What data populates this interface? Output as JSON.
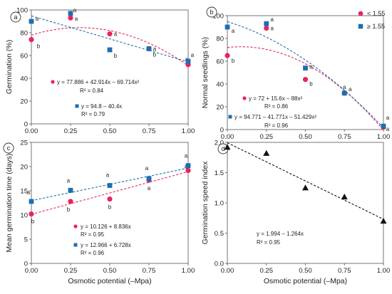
{
  "colors": {
    "red": "#e8245a",
    "blue": "#1f6eb0",
    "black": "#111111"
  },
  "chart_data": [
    {
      "panel": "a",
      "type": "scatter",
      "ylabel": "Germination (%)",
      "xlabel": "",
      "xlim": [
        0,
        1
      ],
      "ylim": [
        0,
        100
      ],
      "xticks": [
        "0.00",
        "0.25",
        "0.50",
        "0.75",
        "1.00"
      ],
      "yticks": [
        "0",
        "20",
        "40",
        "60",
        "80",
        "100"
      ],
      "series": [
        {
          "color": "#e8245a",
          "marker": "circle",
          "x": [
            0,
            0.25,
            0.5,
            0.75,
            1.0
          ],
          "values": [
            74,
            93,
            79,
            66,
            52
          ],
          "labels": [
            "b",
            "a",
            "a",
            "a",
            "a"
          ],
          "fit": {
            "a": 77.886,
            "b": 42.914,
            "c": -69.714
          },
          "equation": "y = 77.886 + 42.914x – 69.714x²",
          "r2": "R² = 0.84"
        },
        {
          "color": "#1f6eb0",
          "marker": "square",
          "x": [
            0,
            0.25,
            0.5,
            0.75,
            1.0
          ],
          "values": [
            90,
            97,
            65,
            66,
            55
          ],
          "labels": [
            "a",
            "a",
            "b",
            "b",
            "a"
          ],
          "fit": {
            "a": 94.8,
            "b": -40.4,
            "c": 0
          },
          "equation": "y = 94.8 – 40.4x",
          "r2": "R² = 0.79"
        }
      ]
    },
    {
      "panel": "b",
      "type": "scatter",
      "ylabel": "Normal seedlings (%)",
      "xlabel": "",
      "xlim": [
        0,
        1
      ],
      "ylim": [
        0,
        100
      ],
      "xticks": [
        "0.00",
        "0.25",
        "0.50",
        "0.75",
        "1.00"
      ],
      "yticks": [
        "0",
        "20",
        "40",
        "60",
        "80",
        "100"
      ],
      "legend": {
        "position": "top-right",
        "entries": [
          "< 1.55",
          "≥ 1.55"
        ]
      },
      "series": [
        {
          "name": "< 1.55",
          "color": "#e8245a",
          "marker": "circle",
          "x": [
            0,
            0.25,
            0.5,
            0.75,
            1.0
          ],
          "values": [
            65,
            89,
            44,
            32,
            2
          ],
          "labels": [
            "b",
            "a",
            "b",
            "a",
            "a"
          ],
          "fit": {
            "a": 72,
            "b": 15.6,
            "c": -88
          },
          "equation": "y = 72 + 15.6x – 88x²",
          "r2": "R² = 0.86"
        },
        {
          "name": "≥ 1.55",
          "color": "#1f6eb0",
          "marker": "square",
          "x": [
            0,
            0.25,
            0.5,
            0.75,
            1.0
          ],
          "values": [
            90,
            93,
            54,
            32,
            3
          ],
          "labels": [
            "a",
            "a",
            "a",
            "a",
            "a"
          ],
          "fit": {
            "a": 94.771,
            "b": -41.771,
            "c": -51.429
          },
          "equation": "y = 94.771 – 41.771x – 51.429x²",
          "r2": "R² = 0.96"
        }
      ]
    },
    {
      "panel": "c",
      "type": "scatter",
      "ylabel": "Mean germination time (days)",
      "xlabel": "Osmotic potential (–Mpa)",
      "xlim": [
        0,
        1
      ],
      "ylim": [
        0,
        25
      ],
      "xticks": [
        "0.00",
        "0.25",
        "0.50",
        "0.75",
        "1.00"
      ],
      "yticks": [
        "0",
        "5",
        "10",
        "15",
        "20",
        "25"
      ],
      "series": [
        {
          "color": "#e8245a",
          "marker": "circle",
          "x": [
            0,
            0.25,
            0.5,
            0.75,
            1.0
          ],
          "values": [
            10.2,
            12.8,
            13.3,
            17.2,
            19.2
          ],
          "labels": [
            "b",
            "b",
            "b",
            "a",
            "a"
          ],
          "fit": {
            "a": 10.126,
            "b": 8.836,
            "c": 0
          },
          "equation": "y = 10.126 + 8.836x",
          "r2": "R² = 0.95"
        },
        {
          "color": "#1f6eb0",
          "marker": "square",
          "x": [
            0,
            0.25,
            0.5,
            0.75,
            1.0
          ],
          "values": [
            12.8,
            15.1,
            16.1,
            17.5,
            20.2
          ],
          "labels": [
            "a",
            "a",
            "a",
            "a",
            "a"
          ],
          "fit": {
            "a": 12.966,
            "b": 6.728,
            "c": 0
          },
          "equation": "y = 12.966 + 6.728x",
          "r2": "R² = 0.96"
        }
      ]
    },
    {
      "panel": "d",
      "type": "scatter",
      "ylabel": "Germination speed index",
      "xlabel": "Osmotic potential (–Mpa)",
      "xlim": [
        0,
        1
      ],
      "ylim": [
        0,
        2
      ],
      "xticks": [
        "0.00",
        "0.25",
        "0.50",
        "0.75",
        "1.00"
      ],
      "yticks": [
        "0.0",
        "0.5",
        "1.0",
        "1.5",
        "2.0"
      ],
      "series": [
        {
          "color": "#111111",
          "marker": "triangle",
          "x": [
            0,
            0.25,
            0.5,
            0.75,
            1.0
          ],
          "values": [
            1.92,
            1.82,
            1.25,
            1.1,
            0.7
          ],
          "labels": [],
          "fit": {
            "a": 1.994,
            "b": -1.264,
            "c": 0
          },
          "equation": "y = 1.994 – 1.264x",
          "r2": "R² = 0.95"
        }
      ]
    }
  ]
}
